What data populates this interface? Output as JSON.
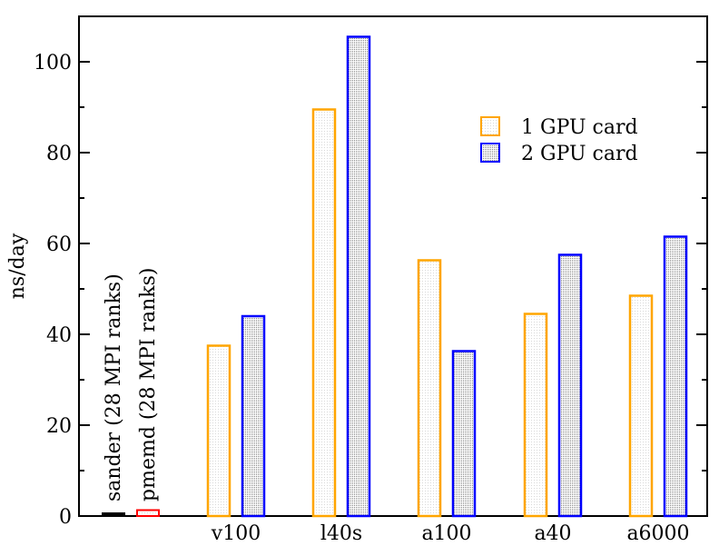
{
  "chart_data": {
    "type": "bar",
    "xlabel": "",
    "ylabel": "ns/day",
    "ylim": [
      0,
      110
    ],
    "yticks": [
      0,
      20,
      40,
      60,
      80,
      100
    ],
    "grid": false,
    "legend_position": "top-right",
    "categories": [
      "v100",
      "l40s",
      "a100",
      "a40",
      "a6000"
    ],
    "series": [
      {
        "name": "1 GPU card",
        "color": "#FFA500",
        "pattern": "dotted-light",
        "values": [
          37.5,
          89.5,
          56.3,
          44.5,
          48.5
        ]
      },
      {
        "name": "2 GPU card",
        "color": "#0000FF",
        "pattern": "dotted-dense",
        "values": [
          44.0,
          105.5,
          36.3,
          57.5,
          61.5
        ]
      }
    ],
    "cpu_bars": [
      {
        "label": "sander (28 MPI ranks)",
        "value": 0.5,
        "color": "#000000"
      },
      {
        "label": "pmemd (28 MPI ranks)",
        "value": 1.3,
        "color": "#FF0000"
      }
    ]
  }
}
